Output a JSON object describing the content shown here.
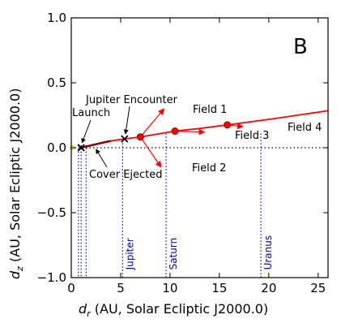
{
  "chart_data": {
    "type": "line",
    "panel_label": "B",
    "xlabel_symbol": "d",
    "xlabel_sub": "r",
    "xlabel_rest": " (AU, Solar Ecliptic J2000.0)",
    "ylabel_symbol": "d",
    "ylabel_sub": "z",
    "ylabel_rest": " (AU, Solar Ecliptic J2000.0)",
    "xlim": [
      0,
      26
    ],
    "ylim": [
      -1.0,
      1.0
    ],
    "xticks": [
      0,
      5,
      10,
      15,
      20,
      25
    ],
    "xtick_labels": [
      "0",
      "5",
      "10",
      "15",
      "20",
      "25"
    ],
    "yticks": [
      -1.0,
      -0.5,
      0.0,
      0.5,
      1.0
    ],
    "ytick_labels": [
      "−1.0",
      "−0.5",
      "0.0",
      "0.5",
      "1.0"
    ],
    "colors": {
      "trajectory": "#ff0000",
      "marker_edge": "#8b0000",
      "planet": "#0000cc",
      "reference": "#000000"
    },
    "trajectory": {
      "x": [
        1.0,
        2.0,
        3.0,
        4.0,
        5.4,
        7.0,
        10.5,
        13.0,
        15.8,
        20.0,
        26.0
      ],
      "y": [
        0.0,
        0.018,
        0.036,
        0.052,
        0.068,
        0.083,
        0.128,
        0.148,
        0.176,
        0.218,
        0.285
      ]
    },
    "events": [
      {
        "label": "Launch",
        "x": 1.0,
        "y": 0.0
      },
      {
        "label": "Jupiter Encounter",
        "x": 5.4,
        "y": 0.068
      },
      {
        "label": "Cover Ejected",
        "x": 2.5,
        "y": 0.02
      }
    ],
    "fields": [
      {
        "label": "Field 1",
        "x": 7.0,
        "y": 0.083,
        "tip_x": 9.4,
        "tip_y": 0.3
      },
      {
        "label": "Field 2",
        "x": 7.0,
        "y": 0.083,
        "tip_x": 9.1,
        "tip_y": -0.15
      },
      {
        "label": "Field 3",
        "x": 10.5,
        "y": 0.128,
        "tip_x": 13.5,
        "tip_y": 0.12
      },
      {
        "label": "Field 4",
        "x": 15.8,
        "y": 0.176,
        "tip_x": 17.4,
        "tip_y": 0.162
      }
    ],
    "planet_orbits": [
      {
        "name": "Jupiter",
        "x": 5.2
      },
      {
        "name": "Saturn",
        "x": 9.6
      },
      {
        "name": "Uranus",
        "x": 19.2
      }
    ],
    "inner_orbits": [
      0.72,
      1.0,
      1.5
    ]
  }
}
